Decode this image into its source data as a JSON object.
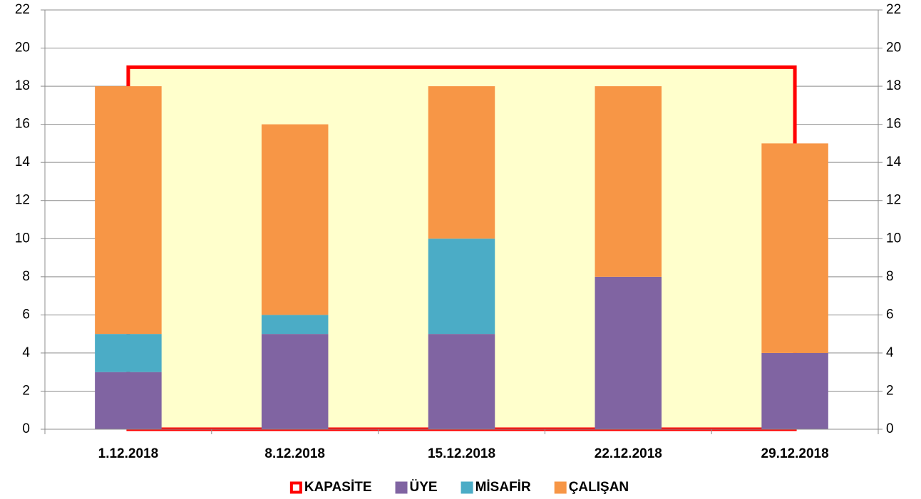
{
  "chart_data": {
    "type": "bar",
    "stacked": true,
    "categories": [
      "1.12.2018",
      "8.12.2018",
      "15.12.2018",
      "22.12.2018",
      "29.12.2018"
    ],
    "series": [
      {
        "name": "KAPASİTE",
        "type": "area",
        "axis": "y2",
        "color": "#ffffcc",
        "edge_color": "#ff0000",
        "values": [
          19,
          19,
          19,
          19,
          19
        ]
      },
      {
        "name": "ÜYE",
        "color": "#8064a2",
        "values": [
          3,
          5,
          5,
          8,
          4
        ]
      },
      {
        "name": "MİSAFİR",
        "color": "#4bacc6",
        "values": [
          2,
          1,
          5,
          0,
          0
        ]
      },
      {
        "name": "ÇALIŞAN",
        "color": "#f79646",
        "values": [
          13,
          10,
          8,
          10,
          11
        ]
      }
    ],
    "ylim": [
      0,
      22
    ],
    "yticks": [
      0,
      2,
      4,
      6,
      8,
      10,
      12,
      14,
      16,
      18,
      20,
      22
    ],
    "y2lim": [
      0,
      22
    ],
    "y2ticks": [
      0,
      2,
      4,
      6,
      8,
      10,
      12,
      14,
      16,
      18,
      20,
      22
    ],
    "grid": true,
    "legend": "bottom"
  }
}
